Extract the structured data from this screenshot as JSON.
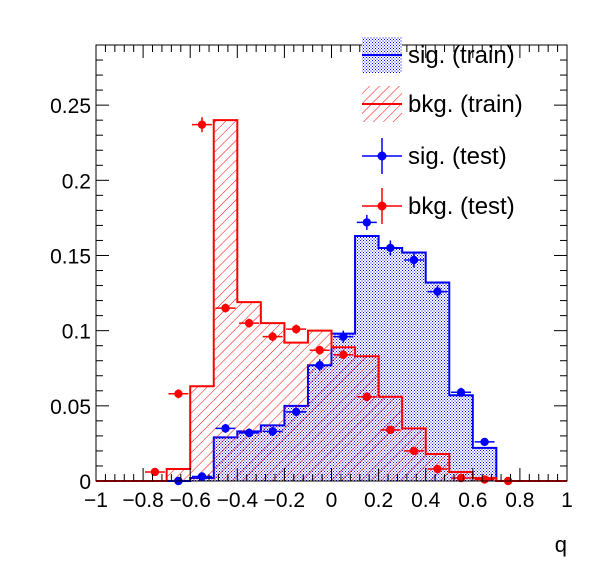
{
  "chart_data": {
    "type": "bar",
    "xlabel": "q",
    "xlim": [
      -1,
      1
    ],
    "ylim": [
      0,
      0.29
    ],
    "x_ticks": [
      {
        "value": -1,
        "label": "−1"
      },
      {
        "value": -0.8,
        "label": "−0.8"
      },
      {
        "value": -0.6,
        "label": "−0.6"
      },
      {
        "value": -0.4,
        "label": "−0.4"
      },
      {
        "value": -0.2,
        "label": "−0.2"
      },
      {
        "value": 0,
        "label": "0"
      },
      {
        "value": 0.2,
        "label": "0.2"
      },
      {
        "value": 0.4,
        "label": "0.4"
      },
      {
        "value": 0.6,
        "label": "0.6"
      },
      {
        "value": 0.8,
        "label": "0.8"
      },
      {
        "value": 1,
        "label": "1"
      }
    ],
    "y_ticks": [
      {
        "value": 0,
        "label": "0"
      },
      {
        "value": 0.05,
        "label": "0.05"
      },
      {
        "value": 0.1,
        "label": "0.1"
      },
      {
        "value": 0.15,
        "label": "0.15"
      },
      {
        "value": 0.2,
        "label": "0.2"
      },
      {
        "value": 0.25,
        "label": "0.25"
      }
    ],
    "bin_edges": [
      -1.0,
      -0.9,
      -0.8,
      -0.7,
      -0.6,
      -0.5,
      -0.4,
      -0.3,
      -0.2,
      -0.1,
      0.0,
      0.1,
      0.2,
      0.3,
      0.4,
      0.5,
      0.6,
      0.7,
      0.8,
      0.9,
      1.0
    ],
    "series": [
      {
        "name": "sig. (train)",
        "kind": "hist-filled",
        "color": "#0000ff",
        "values": [
          0,
          0,
          0,
          0,
          0.002,
          0.029,
          0.033,
          0.037,
          0.05,
          0.077,
          0.098,
          0.163,
          0.155,
          0.152,
          0.132,
          0.057,
          0.022,
          0,
          0,
          0
        ]
      },
      {
        "name": "bkg. (train)",
        "kind": "hist-hatched",
        "color": "#ff0000",
        "values": [
          0,
          0,
          0,
          0.008,
          0.063,
          0.24,
          0.119,
          0.105,
          0.092,
          0.1,
          0.089,
          0.083,
          0.056,
          0.035,
          0.018,
          0.006,
          0.002,
          0,
          0,
          0
        ]
      },
      {
        "name": "sig. (test)",
        "kind": "points",
        "color": "#0000ff",
        "x": [
          -0.65,
          -0.55,
          -0.45,
          -0.35,
          -0.25,
          -0.15,
          -0.05,
          0.05,
          0.15,
          0.25,
          0.35,
          0.45,
          0.55,
          0.65
        ],
        "values": [
          0.0,
          0.003,
          0.035,
          0.032,
          0.033,
          0.046,
          0.077,
          0.096,
          0.172,
          0.155,
          0.147,
          0.126,
          0.059,
          0.026
        ],
        "errors": [
          0.001,
          0.002,
          0.003,
          0.003,
          0.003,
          0.003,
          0.004,
          0.004,
          0.005,
          0.005,
          0.005,
          0.004,
          0.003,
          0.002
        ]
      },
      {
        "name": "bkg. (test)",
        "kind": "points",
        "color": "#ff0000",
        "x": [
          -0.75,
          -0.65,
          -0.55,
          -0.45,
          -0.35,
          -0.25,
          -0.15,
          -0.05,
          0.05,
          0.15,
          0.25,
          0.35,
          0.45,
          0.55,
          0.65,
          0.75
        ],
        "values": [
          0.006,
          0.058,
          0.237,
          0.115,
          0.105,
          0.096,
          0.101,
          0.087,
          0.084,
          0.056,
          0.034,
          0.02,
          0.008,
          0.002,
          0.001,
          0.0
        ],
        "errors": [
          0.001,
          0.003,
          0.005,
          0.003,
          0.003,
          0.003,
          0.003,
          0.003,
          0.003,
          0.003,
          0.002,
          0.002,
          0.001,
          0.001,
          0.001,
          0.001
        ]
      }
    ],
    "legend": {
      "placement": "top-right",
      "entries": [
        {
          "label": "sig. (train)"
        },
        {
          "label": "bkg. (train)"
        },
        {
          "label": "sig. (test)"
        },
        {
          "label": "bkg. (test)"
        }
      ]
    }
  }
}
